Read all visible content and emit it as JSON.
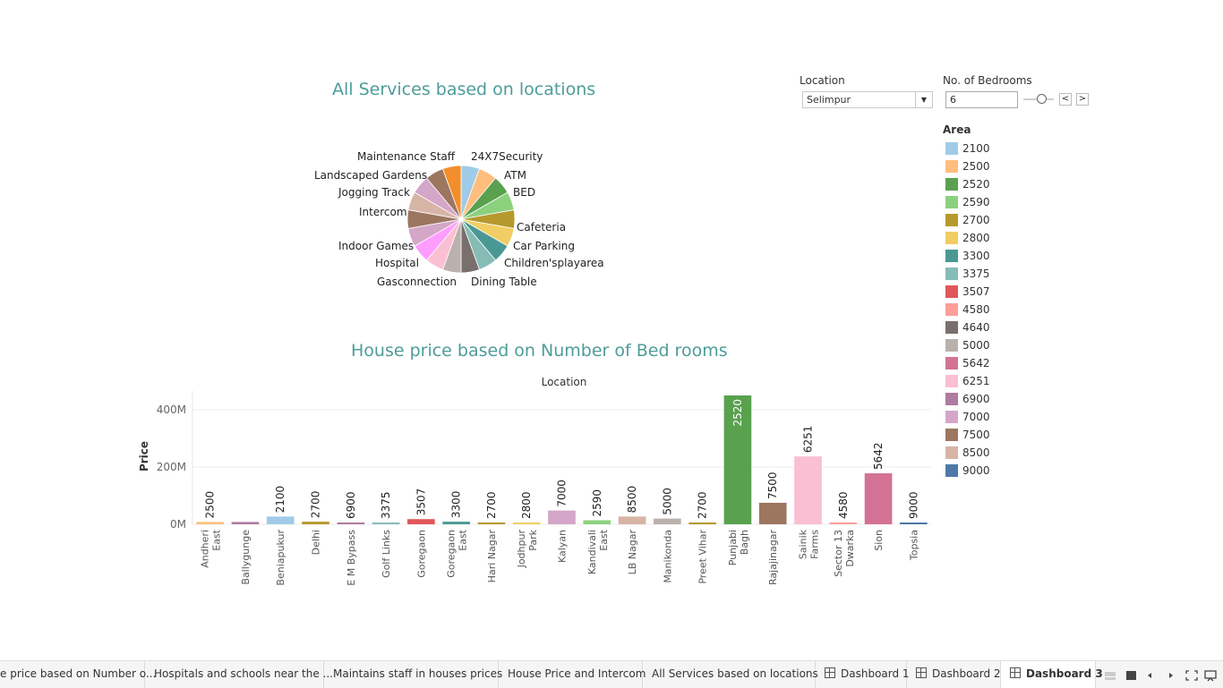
{
  "pie": {
    "title": "All Services based on locations",
    "labels": [
      {
        "text": "Maintenance Staff",
        "color": "#f28e2b"
      },
      {
        "text": "24X7Security",
        "color": "#a0cbe8"
      },
      {
        "text": "ATM",
        "color": "#59a14f"
      },
      {
        "text": "BED",
        "color": "#8cd17d"
      },
      {
        "text": "Landscaped Gardens",
        "color": "#9d7660"
      },
      {
        "text": "Jogging Track",
        "color": "#d4a6c8"
      },
      {
        "text": "Intercom",
        "color": "#d7b5a6"
      },
      {
        "text": "Cafeteria",
        "color": "#b6992d"
      },
      {
        "text": "Car Parking",
        "color": "#f1ce63"
      },
      {
        "text": "Indoor Games",
        "color": "#d4a6c8"
      },
      {
        "text": "Hospital",
        "color": "#ff9dff"
      },
      {
        "text": "Children'splayarea",
        "color": "#499894"
      },
      {
        "text": "Gasconnection",
        "color": "#fabfd2"
      },
      {
        "text": "Dining Table",
        "color": "#79706e"
      }
    ]
  },
  "filters": {
    "location_label": "Location",
    "location_value": "Selimpur",
    "bedrooms_label": "No. of Bedrooms",
    "bedrooms_value": "6",
    "prev": "<",
    "next": ">",
    "dropdown_arrow": "▼"
  },
  "legend": {
    "title": "Area",
    "items": [
      {
        "label": "2100",
        "color": "#a0cbe8"
      },
      {
        "label": "2500",
        "color": "#ffbe7d"
      },
      {
        "label": "2520",
        "color": "#59a14f"
      },
      {
        "label": "2590",
        "color": "#8cd17d"
      },
      {
        "label": "2700",
        "color": "#b6992d"
      },
      {
        "label": "2800",
        "color": "#f1ce63"
      },
      {
        "label": "3300",
        "color": "#499894"
      },
      {
        "label": "3375",
        "color": "#86bcb6"
      },
      {
        "label": "3507",
        "color": "#e15759"
      },
      {
        "label": "4580",
        "color": "#ff9d9a"
      },
      {
        "label": "4640",
        "color": "#79706e"
      },
      {
        "label": "5000",
        "color": "#bab0ac"
      },
      {
        "label": "5642",
        "color": "#d37295"
      },
      {
        "label": "6251",
        "color": "#fabfd2"
      },
      {
        "label": "6900",
        "color": "#b07aa1"
      },
      {
        "label": "7000",
        "color": "#d4a6c8"
      },
      {
        "label": "7500",
        "color": "#9d7660"
      },
      {
        "label": "8500",
        "color": "#d7b5a6"
      },
      {
        "label": "9000",
        "color": "#4e79a7"
      }
    ]
  },
  "chart_data": {
    "type": "bar",
    "title": "House price based on Number of Bed rooms",
    "xlabel": "Location",
    "ylabel": "Price",
    "ylim": [
      0,
      450
    ],
    "yticks": [
      {
        "v": 0,
        "label": "0M"
      },
      {
        "v": 200,
        "label": "200M"
      },
      {
        "v": 400,
        "label": "400M"
      }
    ],
    "categories": [
      {
        "name": [
          "Andheri",
          "East"
        ],
        "area": "2500",
        "value": 8,
        "color": "#ffbe7d"
      },
      {
        "name": [
          "Ballygunge"
        ],
        "area": "",
        "value": 8,
        "color": "#b07aa1"
      },
      {
        "name": [
          "Beniapukur"
        ],
        "area": "2100",
        "value": 27,
        "color": "#a0cbe8"
      },
      {
        "name": [
          "Delhi"
        ],
        "area": "2700",
        "value": 9,
        "color": "#b6992d"
      },
      {
        "name": [
          "E M Bypass"
        ],
        "area": "6900",
        "value": 2,
        "color": "#b07aa1"
      },
      {
        "name": [
          "Golf Links"
        ],
        "area": "3375",
        "value": 2,
        "color": "#86bcb6"
      },
      {
        "name": [
          "Goregaon"
        ],
        "area": "3507",
        "value": 18,
        "color": "#e15759"
      },
      {
        "name": [
          "Goregaon",
          "East"
        ],
        "area": "3300",
        "value": 9,
        "color": "#499894"
      },
      {
        "name": [
          "Hari Nagar"
        ],
        "area": "2700",
        "value": 3,
        "color": "#b6992d"
      },
      {
        "name": [
          "Jodhpur",
          "Park"
        ],
        "area": "2800",
        "value": 4,
        "color": "#f1ce63"
      },
      {
        "name": [
          "Kalyan"
        ],
        "area": "7000",
        "value": 48,
        "color": "#d4a6c8"
      },
      {
        "name": [
          "Kandivali",
          "East"
        ],
        "area": "2590",
        "value": 14,
        "color": "#8cd17d"
      },
      {
        "name": [
          "LB Nagar"
        ],
        "area": "8500",
        "value": 27,
        "color": "#d7b5a6"
      },
      {
        "name": [
          "Manikonda"
        ],
        "area": "5000",
        "value": 20,
        "color": "#bab0ac"
      },
      {
        "name": [
          "Preet Vihar"
        ],
        "area": "2700",
        "value": 5,
        "color": "#b6992d"
      },
      {
        "name": [
          "Punjabi",
          "Bagh"
        ],
        "area": "2520",
        "value": 450,
        "color": "#59a14f"
      },
      {
        "name": [
          "Rajajinagar"
        ],
        "area": "7500",
        "value": 75,
        "color": "#9d7660"
      },
      {
        "name": [
          "Sainik",
          "Farms"
        ],
        "area": "6251",
        "value": 237,
        "color": "#fabfd2"
      },
      {
        "name": [
          "Sector 13",
          "Dwarka"
        ],
        "area": "4580",
        "value": 6,
        "color": "#ff9d9a"
      },
      {
        "name": [
          "Sion"
        ],
        "area": "5642",
        "value": 178,
        "color": "#d37295"
      },
      {
        "name": [
          "Topsia"
        ],
        "area": "9000",
        "value": 3,
        "color": "#4e79a7"
      }
    ]
  },
  "tabs": [
    {
      "label": "e price based on Number o...",
      "icon": false,
      "active": false
    },
    {
      "label": "Hospitals and schools near the ...",
      "icon": false,
      "active": false
    },
    {
      "label": "Maintains staff in houses prices",
      "icon": false,
      "active": false
    },
    {
      "label": "House Price and Intercom",
      "icon": false,
      "active": false
    },
    {
      "label": "All Services based on locations",
      "icon": false,
      "active": false
    },
    {
      "label": "Dashboard 1",
      "icon": true,
      "active": false
    },
    {
      "label": "Dashboard 2",
      "icon": true,
      "active": false
    },
    {
      "label": "Dashboard 3",
      "icon": true,
      "active": true
    }
  ]
}
